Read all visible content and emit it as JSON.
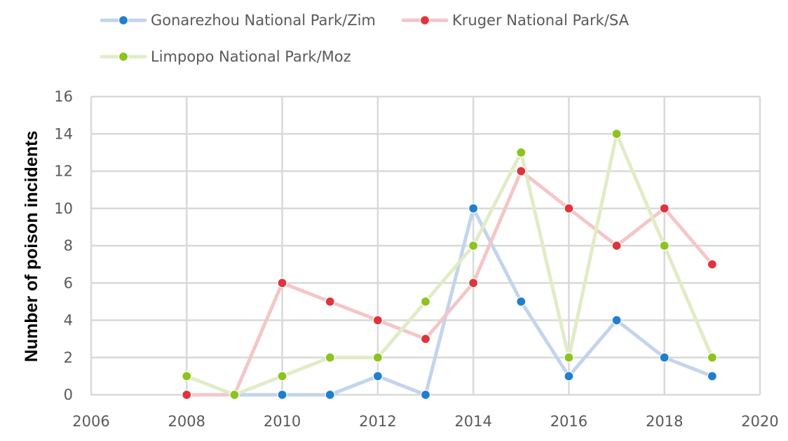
{
  "chart_data": {
    "type": "line",
    "title": "",
    "xlabel": "",
    "ylabel": "Number of poison incidents",
    "xlim": [
      2006,
      2020
    ],
    "ylim": [
      0,
      16
    ],
    "xticks": [
      2006,
      2008,
      2010,
      2012,
      2014,
      2016,
      2018,
      2020
    ],
    "yticks": [
      0,
      2,
      4,
      6,
      8,
      10,
      12,
      14,
      16
    ],
    "grid": true,
    "legend_position": "top",
    "series": [
      {
        "name": "Gonarezhou National Park/Zim",
        "line_color": "#c3d4ec",
        "marker_color": "#1f7fd0",
        "points": [
          [
            2008,
            0
          ],
          [
            2009,
            0
          ],
          [
            2010,
            0
          ],
          [
            2011,
            0
          ],
          [
            2012,
            1
          ],
          [
            2013,
            0
          ],
          [
            2014,
            10
          ],
          [
            2015,
            5
          ],
          [
            2016,
            1
          ],
          [
            2017,
            4
          ],
          [
            2018,
            2
          ],
          [
            2019,
            1
          ]
        ]
      },
      {
        "name": "Kruger National Park/SA",
        "line_color": "#f4c6c8",
        "marker_color": "#e0343d",
        "points": [
          [
            2008,
            0
          ],
          [
            2009,
            0
          ],
          [
            2010,
            6
          ],
          [
            2011,
            5
          ],
          [
            2012,
            4
          ],
          [
            2013,
            3
          ],
          [
            2014,
            6
          ],
          [
            2015,
            12
          ],
          [
            2016,
            10
          ],
          [
            2017,
            8
          ],
          [
            2018,
            10
          ],
          [
            2019,
            7
          ]
        ]
      },
      {
        "name": "Limpopo National Park/Moz",
        "line_color": "#e1ecc7",
        "marker_color": "#8dc31e",
        "points": [
          [
            2008,
            1
          ],
          [
            2009,
            0
          ],
          [
            2010,
            1
          ],
          [
            2011,
            2
          ],
          [
            2012,
            2
          ],
          [
            2013,
            5
          ],
          [
            2014,
            8
          ],
          [
            2015,
            13
          ],
          [
            2016,
            2
          ],
          [
            2017,
            14
          ],
          [
            2018,
            8
          ],
          [
            2019,
            2
          ]
        ]
      }
    ]
  }
}
